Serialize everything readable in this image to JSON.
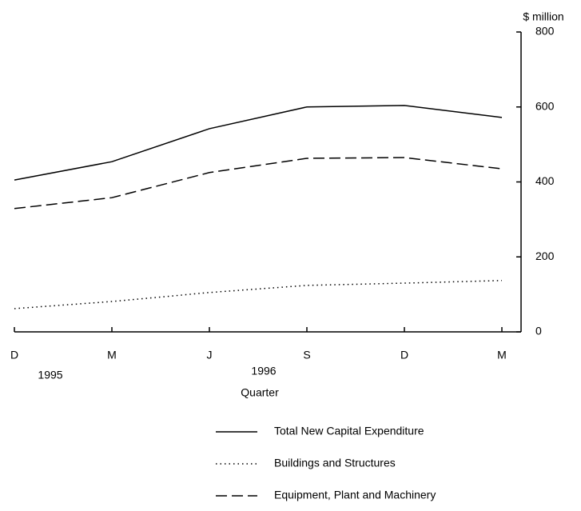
{
  "chart_data": {
    "type": "line",
    "y_axis_label": "$ million",
    "x_axis_label": "Quarter",
    "categories": [
      "D",
      "M",
      "J",
      "S",
      "D",
      "M"
    ],
    "year_labels": [
      "1995",
      "1996"
    ],
    "ylim": [
      0,
      800
    ],
    "yticks": [
      0,
      200,
      400,
      600,
      800
    ],
    "series": [
      {
        "name": "Total New Capital Expenditure",
        "color": "#000000",
        "dash": "solid",
        "values": [
          405,
          454,
          542,
          600,
          604,
          572
        ]
      },
      {
        "name": "Buildings and Structures",
        "color": "#000000",
        "dash": "dotted",
        "values": [
          62,
          81,
          105,
          124,
          130,
          137
        ]
      },
      {
        "name": "Equipment, Plant and Machinery",
        "color": "#000000",
        "dash": "dashed",
        "values": [
          329,
          358,
          425,
          463,
          465,
          435
        ]
      }
    ]
  }
}
